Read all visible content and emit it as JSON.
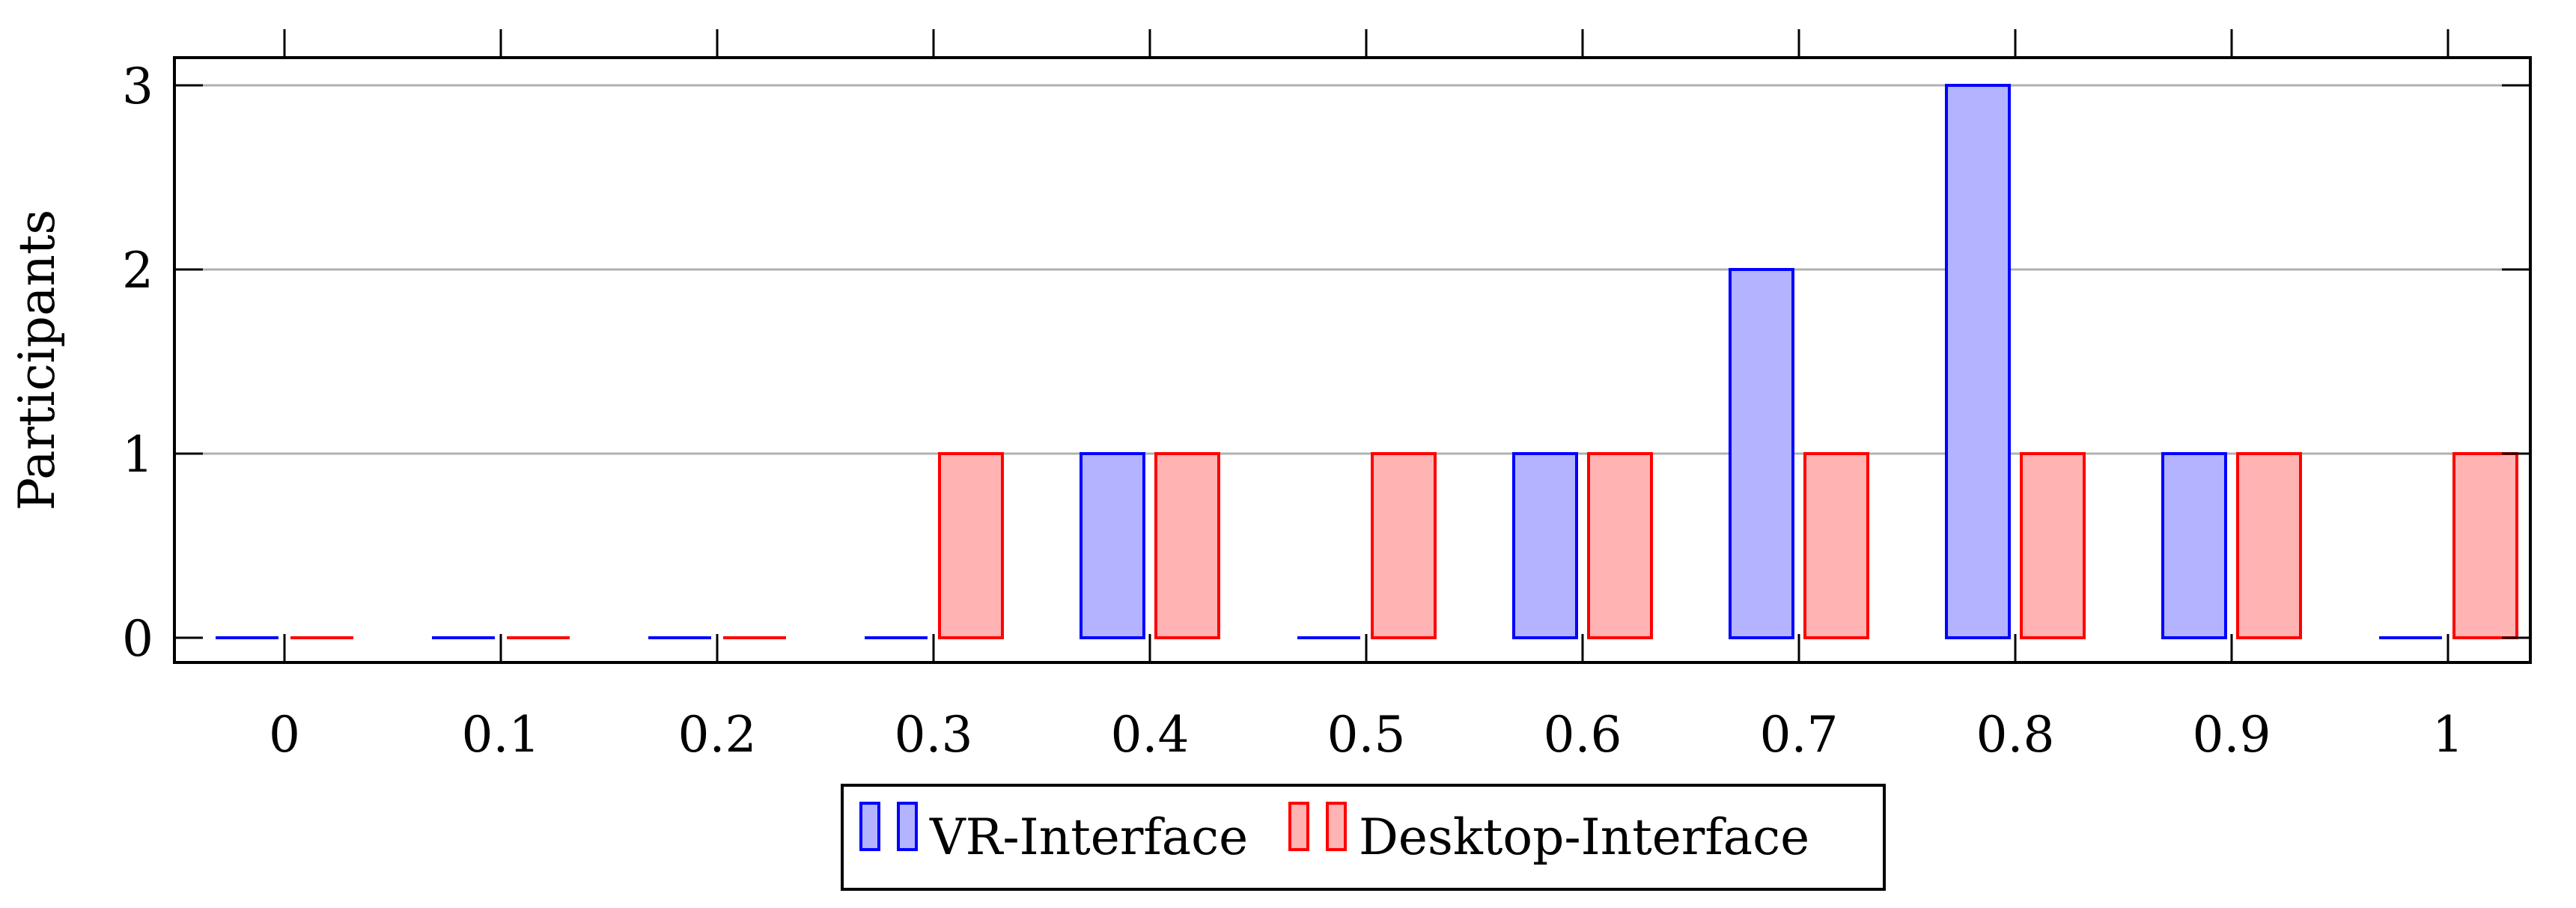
{
  "chart_data": {
    "type": "bar",
    "title": "",
    "xlabel": "",
    "ylabel": "Participants",
    "categories": [
      "0",
      "0.1",
      "0.2",
      "0.3",
      "0.4",
      "0.5",
      "0.6",
      "0.7",
      "0.8",
      "0.9",
      "1"
    ],
    "x": [
      0,
      0.1,
      0.2,
      0.3,
      0.4,
      0.5,
      0.6,
      0.7,
      0.8,
      0.9,
      1
    ],
    "series": [
      {
        "name": "VR-Interface",
        "values": [
          0,
          0,
          0,
          0,
          1,
          0,
          1,
          2,
          3,
          1,
          0
        ],
        "fill": "#b3b3ff",
        "stroke": "#0000ff"
      },
      {
        "name": "Desktop-Interface",
        "values": [
          0,
          0,
          0,
          1,
          1,
          1,
          1,
          1,
          1,
          1,
          1
        ],
        "fill": "#ffb3b3",
        "stroke": "#ff0000"
      }
    ],
    "yticks": [
      "0",
      "1",
      "2",
      "3"
    ],
    "ylim": [
      0,
      3.15
    ],
    "grid": "horizontal",
    "legend_position": "bottom-center",
    "colors": {
      "axis": "#000000",
      "grid": "#b0b0b0"
    }
  }
}
